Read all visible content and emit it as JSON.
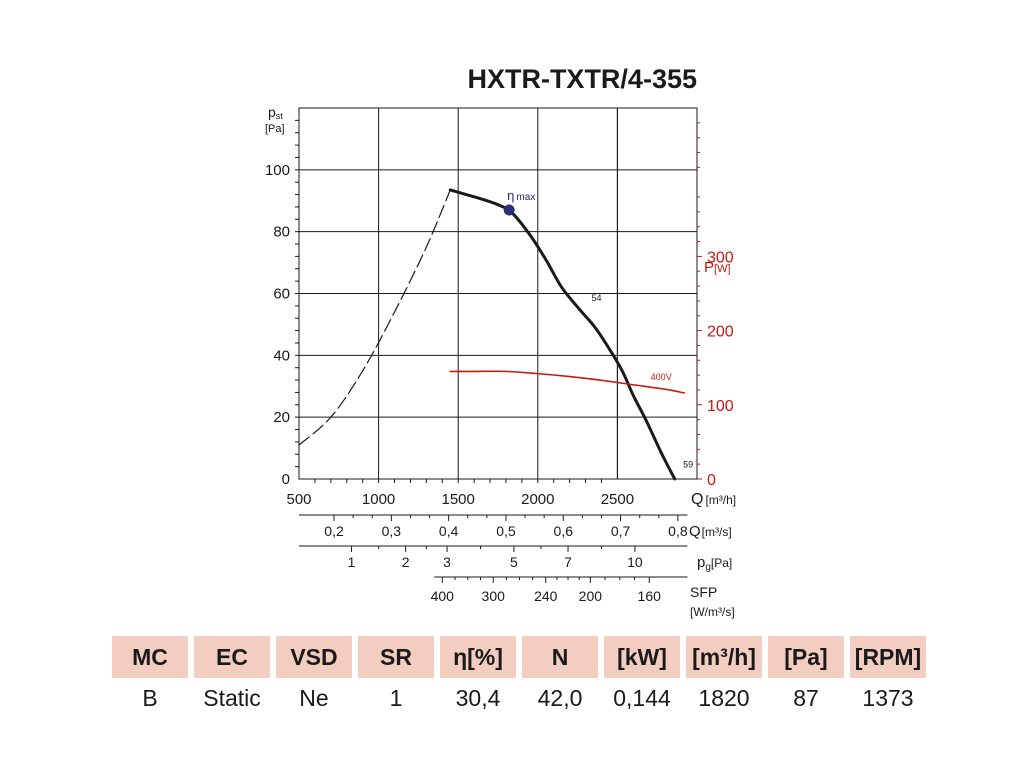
{
  "chart_data": {
    "type": "line",
    "title": "HXTR-TXTR/4-355",
    "xlabel": {
      "symbol": "Q",
      "unit": "[m³/h]"
    },
    "ylabel": {
      "symbol": "p",
      "sub": "st",
      "unit": "[Pa]"
    },
    "y2label": {
      "symbol": "P",
      "unit": "[W]"
    },
    "xlim": [
      500,
      3000
    ],
    "ylim": [
      0,
      120
    ],
    "y2lim": [
      0,
      500
    ],
    "x_ticks": [
      500,
      1000,
      1500,
      2000,
      2500
    ],
    "y_ticks": [
      0,
      20,
      40,
      60,
      80,
      100
    ],
    "y2_ticks": [
      0,
      100,
      200,
      300
    ],
    "grid": true,
    "series": [
      {
        "name": "",
        "kind": "pressure",
        "axis": "left",
        "x": [
          1450,
          1550,
          1650,
          1760,
          1840,
          1950,
          2050,
          2150,
          2260,
          2360,
          2450,
          2530,
          2600,
          2680,
          2780,
          2860
        ],
        "y": [
          93.5,
          92,
          90.5,
          88.5,
          86,
          79,
          71,
          62,
          55,
          49,
          42,
          35,
          27,
          19,
          8,
          0
        ]
      },
      {
        "name": "",
        "kind": "unstable",
        "axis": "left",
        "style": "dashed",
        "x": [
          500,
          700,
          900,
          1100,
          1300,
          1450
        ],
        "y": [
          11,
          20,
          35,
          54,
          75,
          93.5
        ]
      },
      {
        "name": "",
        "kind": "power",
        "axis": "right",
        "x": [
          1450,
          1600,
          1800,
          2000,
          2200,
          2400,
          2600,
          2800,
          2920
        ],
        "y": [
          145,
          145,
          145,
          142,
          138,
          133,
          127,
          121,
          116
        ]
      }
    ],
    "annotations": [
      {
        "id": "eta",
        "symbol": "η",
        "sub": "max",
        "x": 1820,
        "y": 87
      },
      {
        "id": "c54",
        "text": "54",
        "x": 2300,
        "y": 57
      },
      {
        "id": "c59",
        "text": "59",
        "x": 2875,
        "y": 3
      },
      {
        "id": "v400",
        "text": "400V",
        "x": 2860,
        "y2": 131
      }
    ],
    "secondary_scales": [
      {
        "id": "q_ms",
        "label": "Q",
        "unit": "[m³/s]",
        "ticks": [
          {
            "label": "0,2",
            "q": 720
          },
          {
            "label": "0,3",
            "q": 1080
          },
          {
            "label": "0,4",
            "q": 1440
          },
          {
            "label": "0,5",
            "q": 1800
          },
          {
            "label": "0,6",
            "q": 2160
          },
          {
            "label": "0,7",
            "q": 2520
          },
          {
            "label": "0,8",
            "q": 2880
          }
        ]
      },
      {
        "id": "pg",
        "label": "p",
        "sub": "g",
        "unit": "[Pa]",
        "ticks": [
          {
            "label": "1",
            "q": 830
          },
          {
            "label": "2",
            "q": 1170
          },
          {
            "label": "3",
            "q": 1430
          },
          {
            "label": "5",
            "q": 1850
          },
          {
            "label": "7",
            "q": 2190
          },
          {
            "label": "10",
            "q": 2610
          }
        ]
      },
      {
        "id": "sfp",
        "label": "SFP",
        "unit": "[W/m³/s]",
        "ticks": [
          {
            "label": "400",
            "q": 1400
          },
          {
            "label": "300",
            "q": 1720
          },
          {
            "label": "240",
            "q": 2050
          },
          {
            "label": "200",
            "q": 2330
          },
          {
            "label": "160",
            "q": 2700
          }
        ]
      }
    ]
  },
  "table": {
    "headers": [
      "MC",
      "EC",
      "VSD",
      "SR",
      "η[%]",
      "N",
      "[kW]",
      "[m³/h]",
      "[Pa]",
      "[RPM]"
    ],
    "values": [
      "B",
      "Static",
      "Ne",
      "1",
      "30,4",
      "42,0",
      "0,144",
      "1820",
      "87",
      "1373"
    ],
    "colors": {
      "header_bg": "#f3cdbf"
    }
  },
  "colors": {
    "curve": "#1a1a1a",
    "power": "#c8190f",
    "marker": "#2b2f7a",
    "grid": "#1a1a1a"
  }
}
